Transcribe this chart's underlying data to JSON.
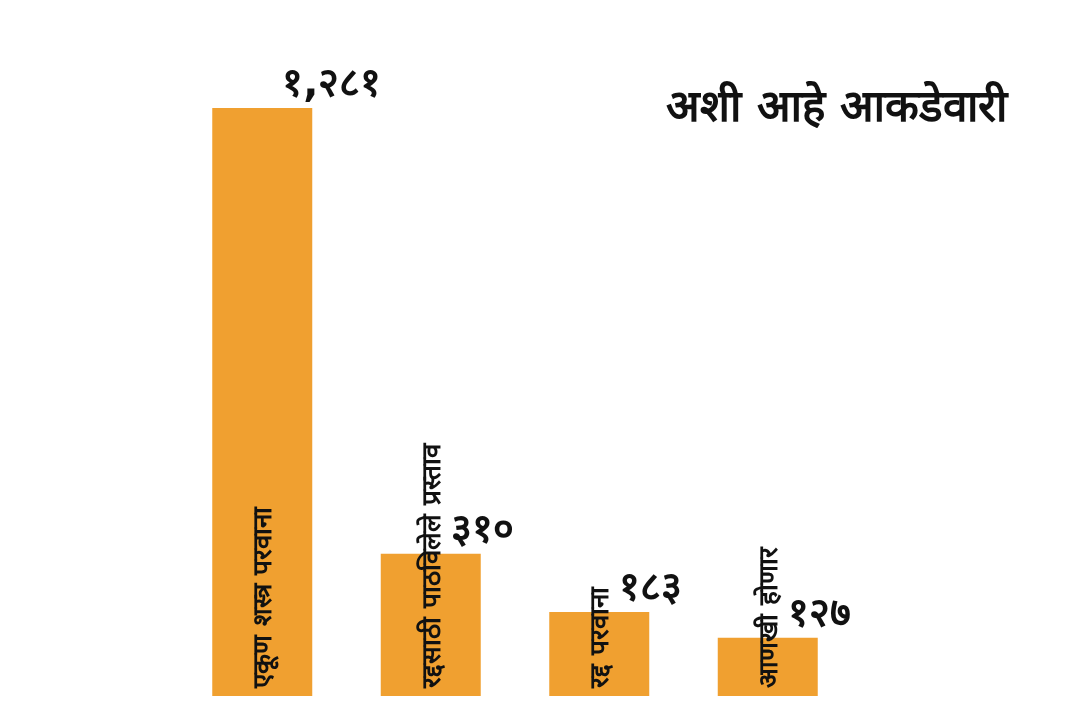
{
  "chart_data": {
    "type": "bar",
    "title": "अशी आहे आकडेवारी",
    "categories": [
      "एकूण शस्त्र परवाना",
      "रद्दसाठी पाठविलेले प्रस्ताव",
      "रद्द परवाना",
      "आणखी होणार"
    ],
    "values": [
      1281,
      310,
      183,
      127
    ],
    "value_labels": [
      "१,२८१",
      "३१०",
      "१८३",
      "१२७"
    ],
    "color": "#f0a030"
  }
}
